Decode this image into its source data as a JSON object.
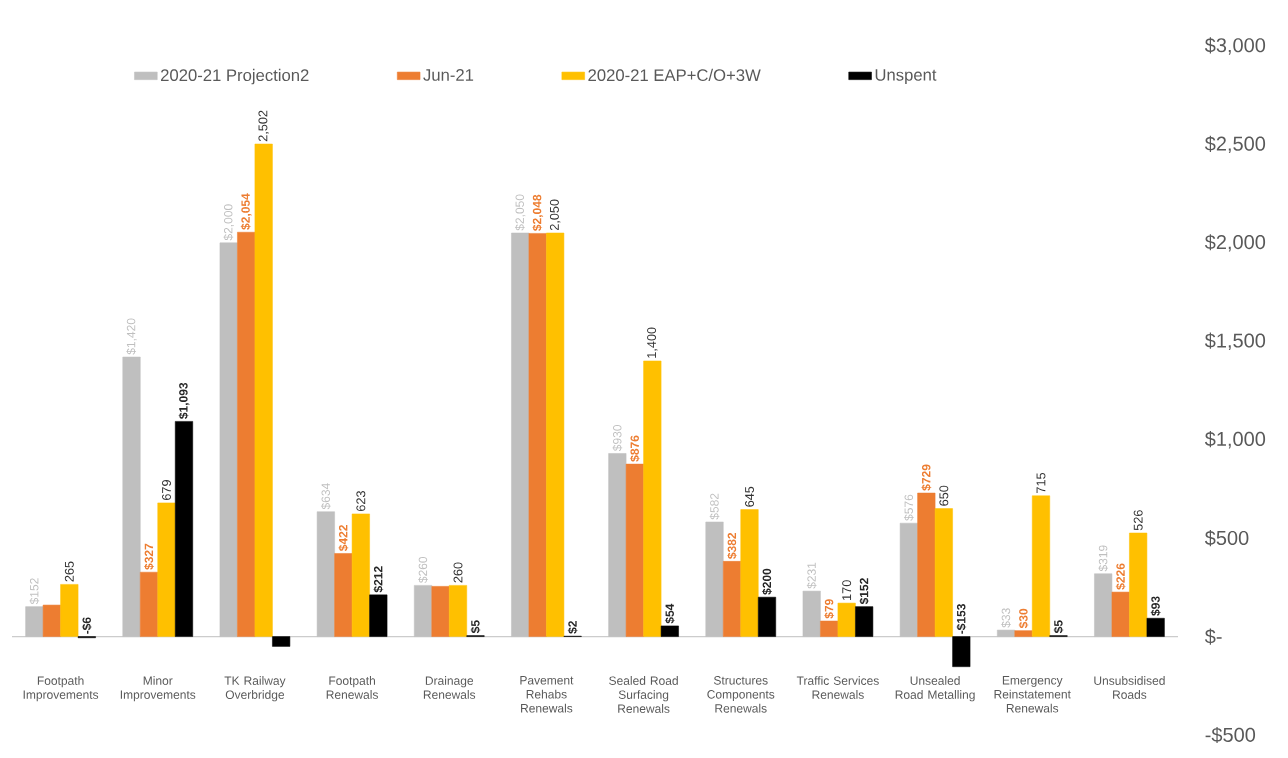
{
  "chart_data": {
    "type": "bar",
    "categories": [
      "Footpath Improvements",
      "Minor Improvements",
      "TK Railway Overbridge",
      "Footpath Renewals",
      "Drainage Renewals",
      "Pavement Rehabs Renewals",
      "Sealed Road Surfacing Renewals",
      "Structures Components Renewals",
      "Traffic Services Renewals",
      "Unsealed Road Metalling",
      "Emergency Reinstatement Renewals",
      "Unsubsidised Roads"
    ],
    "series": [
      {
        "name": "2020-21 Projection2",
        "color": "#bfbfbf",
        "values": [
          152,
          1420,
          2000,
          634,
          260,
          2050,
          930,
          582,
          231,
          576,
          33,
          319
        ],
        "value_labels": [
          "$152",
          "$1,420",
          "$2,000",
          "$634",
          "$260",
          "$2,050",
          "$930",
          "$582",
          "$231",
          "$576",
          "$33",
          "$319"
        ]
      },
      {
        "name": "Jun-21",
        "color": "#ed7d31",
        "values": [
          160,
          327,
          2054,
          422,
          255,
          2048,
          876,
          382,
          79,
          729,
          30,
          226
        ],
        "value_labels": [
          null,
          "$327",
          "$2,054",
          "$422",
          null,
          "$2,048",
          "$876",
          "$382",
          "$79",
          "$729",
          "$30",
          "$226"
        ]
      },
      {
        "name": "2020-21 EAP+C/O+3W",
        "color": "#ffc000",
        "values": [
          265,
          679,
          2502,
          623,
          260,
          2050,
          1400,
          645,
          170,
          650,
          715,
          526
        ],
        "value_labels": [
          "265",
          "679",
          "2,502",
          "623",
          "260",
          "2,050",
          "1,400",
          "645",
          "170",
          "650",
          "715",
          "526"
        ]
      },
      {
        "name": "Unspent",
        "color": "#000000",
        "values": [
          -6,
          1093,
          -50,
          212,
          5,
          2,
          54,
          200,
          152,
          -153,
          5,
          93
        ],
        "value_labels": [
          "-$6",
          "$1,093",
          null,
          "$212",
          "$5",
          "$2",
          "$54",
          "$200",
          "$152",
          "-$153",
          "$5",
          "$93"
        ]
      }
    ],
    "ylim": [
      -500,
      3000
    ],
    "yticks": [
      {
        "value": 3000,
        "label": "$3,000"
      },
      {
        "value": 2500,
        "label": "$2,500"
      },
      {
        "value": 2000,
        "label": "$2,000"
      },
      {
        "value": 1500,
        "label": "$1,500"
      },
      {
        "value": 1000,
        "label": "$1,000"
      },
      {
        "value": 500,
        "label": "$500"
      },
      {
        "value": 0,
        "label": "$-"
      },
      {
        "value": -500,
        "label": "-$500"
      }
    ],
    "legend": "top"
  }
}
